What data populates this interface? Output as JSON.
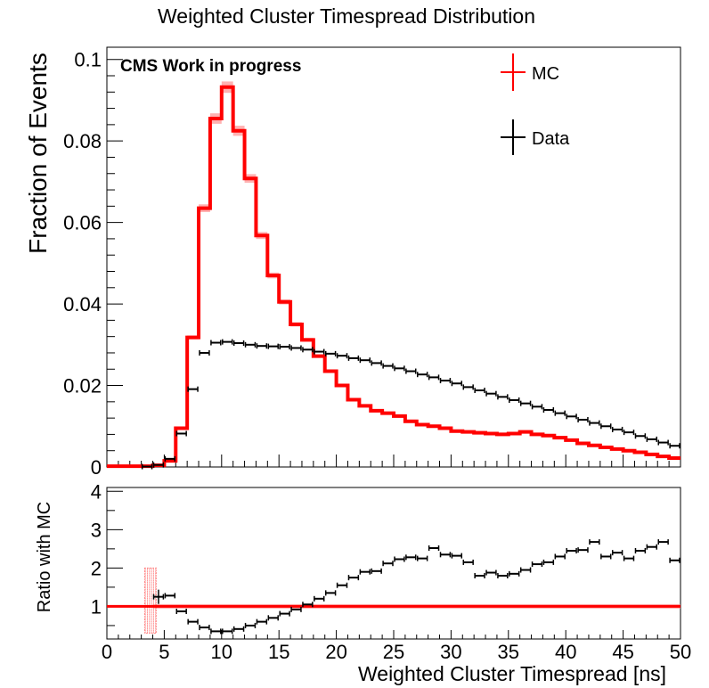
{
  "chart_data": [
    {
      "type": "line",
      "title": "Weighted Cluster Timespread Distribution",
      "annotation": "CMS Work in progress",
      "ylabel": "Fraction of Events",
      "xlim": [
        0,
        50
      ],
      "ylim": [
        0,
        0.103
      ],
      "yticks": [
        0,
        0.02,
        0.04,
        0.06,
        0.08,
        0.1
      ],
      "ytick_labels": [
        "0",
        "0.02",
        "0.04",
        "0.06",
        "0.08",
        "0.1"
      ],
      "legend": {
        "position": "top-right",
        "entries": [
          "MC",
          "Data"
        ]
      },
      "bin_width": 1,
      "series": [
        {
          "name": "MC",
          "style": "step",
          "color": "#ff0000",
          "x": [
            0.5,
            1.5,
            2.5,
            3.5,
            4.5,
            5.5,
            6.5,
            7.5,
            8.5,
            9.5,
            10.5,
            11.5,
            12.5,
            13.5,
            14.5,
            15.5,
            16.5,
            17.5,
            18.5,
            19.5,
            20.5,
            21.5,
            22.5,
            23.5,
            24.5,
            25.5,
            26.5,
            27.5,
            28.5,
            29.5,
            30.5,
            31.5,
            32.5,
            33.5,
            34.5,
            35.5,
            36.5,
            37.5,
            38.5,
            39.5,
            40.5,
            41.5,
            42.5,
            43.5,
            44.5,
            45.5,
            46.5,
            47.5,
            48.5,
            49.5
          ],
          "values": [
            0.0002,
            0.0002,
            0.0002,
            0.0002,
            0.0004,
            0.0015,
            0.0095,
            0.0318,
            0.0635,
            0.0855,
            0.0932,
            0.0825,
            0.0708,
            0.0568,
            0.047,
            0.0405,
            0.035,
            0.0312,
            0.0272,
            0.0235,
            0.02,
            0.0165,
            0.015,
            0.0138,
            0.0132,
            0.0125,
            0.0112,
            0.0104,
            0.01,
            0.0095,
            0.0088,
            0.0086,
            0.0084,
            0.0082,
            0.008,
            0.0082,
            0.0086,
            0.008,
            0.0077,
            0.0072,
            0.0066,
            0.0058,
            0.0053,
            0.0048,
            0.0044,
            0.004,
            0.0036,
            0.0031,
            0.0026,
            0.0022
          ]
        },
        {
          "name": "Data",
          "style": "errorbar",
          "color": "#000000",
          "x": [
            3.5,
            4.5,
            5.5,
            6.5,
            7.5,
            8.5,
            9.5,
            10.5,
            11.5,
            12.5,
            13.5,
            14.5,
            15.5,
            16.5,
            17.5,
            18.5,
            19.5,
            20.5,
            21.5,
            22.5,
            23.5,
            24.5,
            25.5,
            26.5,
            27.5,
            28.5,
            29.5,
            30.5,
            31.5,
            32.5,
            33.5,
            34.5,
            35.5,
            36.5,
            37.5,
            38.5,
            39.5,
            40.5,
            41.5,
            42.5,
            43.5,
            44.5,
            45.5,
            46.5,
            47.5,
            48.5,
            49.5
          ],
          "values": [
            0.0001,
            0.0005,
            0.002,
            0.0082,
            0.0191,
            0.028,
            0.0305,
            0.0307,
            0.0304,
            0.03,
            0.0297,
            0.0296,
            0.0295,
            0.0292,
            0.0288,
            0.0283,
            0.0278,
            0.0273,
            0.0267,
            0.0262,
            0.0255,
            0.0248,
            0.0242,
            0.0235,
            0.0227,
            0.022,
            0.0212,
            0.0205,
            0.0196,
            0.0188,
            0.018,
            0.0172,
            0.0164,
            0.0156,
            0.0148,
            0.014,
            0.0132,
            0.0124,
            0.0116,
            0.0108,
            0.01,
            0.0092,
            0.0085,
            0.0076,
            0.0068,
            0.006,
            0.0052
          ]
        }
      ]
    },
    {
      "type": "scatter",
      "ylabel": "Ratio with MC",
      "xlabel": "Weighted Cluster Timespread [ns]",
      "xlim": [
        0,
        50
      ],
      "ylim": [
        0.15,
        4.1
      ],
      "xticks": [
        0,
        5,
        10,
        15,
        20,
        25,
        30,
        35,
        40,
        45,
        50
      ],
      "xtick_labels": [
        "0",
        "5",
        "10",
        "15",
        "20",
        "25",
        "30",
        "35",
        "40",
        "45",
        "50"
      ],
      "yticks": [
        1,
        2,
        3,
        4
      ],
      "ytick_labels": [
        "1",
        "2",
        "3",
        "4"
      ],
      "reference_line": 1,
      "series": [
        {
          "name": "Data",
          "style": "errorbar",
          "color": "#000000",
          "x": [
            4.5,
            5.5,
            6.5,
            7.5,
            8.5,
            9.5,
            10.5,
            11.5,
            12.5,
            13.5,
            14.5,
            15.5,
            16.5,
            17.5,
            18.5,
            19.5,
            20.5,
            21.5,
            22.5,
            23.5,
            24.5,
            25.5,
            26.5,
            27.5,
            28.5,
            29.5,
            30.5,
            31.5,
            32.5,
            33.5,
            34.5,
            35.5,
            36.5,
            37.5,
            38.5,
            39.5,
            40.5,
            41.5,
            42.5,
            43.5,
            44.5,
            45.5,
            46.5,
            47.5,
            48.5,
            49.5
          ],
          "values": [
            1.25,
            1.28,
            0.87,
            0.6,
            0.45,
            0.35,
            0.35,
            0.41,
            0.5,
            0.6,
            0.7,
            0.81,
            0.92,
            1.05,
            1.2,
            1.35,
            1.55,
            1.75,
            1.9,
            1.92,
            2.12,
            2.23,
            2.28,
            2.25,
            2.52,
            2.35,
            2.32,
            2.15,
            1.8,
            1.88,
            1.8,
            1.85,
            1.95,
            2.1,
            2.15,
            2.3,
            2.45,
            2.47,
            2.68,
            2.3,
            2.4,
            2.25,
            2.45,
            2.55,
            2.68,
            2.2
          ]
        }
      ]
    }
  ]
}
